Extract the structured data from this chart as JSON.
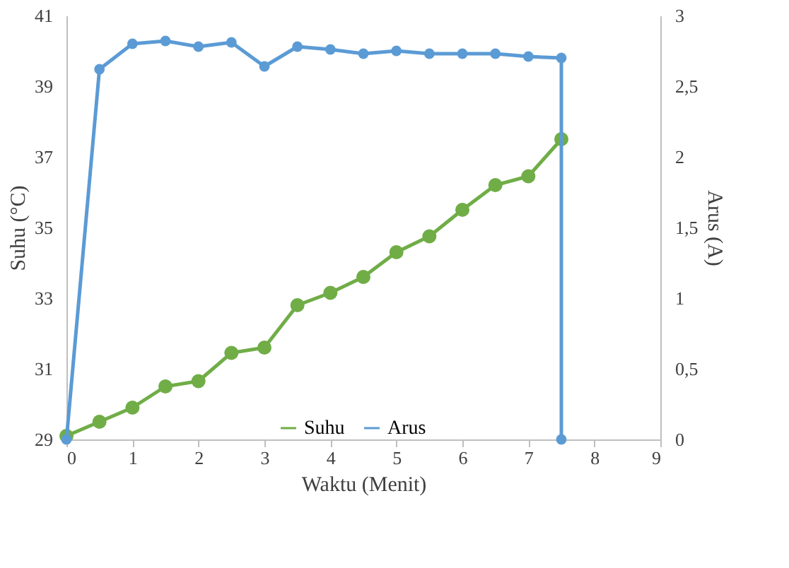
{
  "chart_data": {
    "type": "line",
    "xlabel": "Waktu (Menit)",
    "ylabel": "Suhu (°C)",
    "y2label": "Arus (A)",
    "xlim": [
      0,
      9
    ],
    "xticks": [
      0,
      1,
      2,
      3,
      4,
      5,
      6,
      7,
      8,
      9
    ],
    "ylim": [
      29,
      41
    ],
    "yticks": [
      29,
      31,
      33,
      35,
      37,
      39,
      41
    ],
    "y2lim": [
      0,
      3
    ],
    "y2ticks": [
      0,
      {
        "value": 0.5,
        "label": "0,5"
      },
      1,
      {
        "value": 1.5,
        "label": "1,5"
      },
      2,
      {
        "value": 2.5,
        "label": "2,5"
      },
      3
    ],
    "grid": false,
    "legend": "bottom",
    "marker": "circle",
    "line_style": "solid",
    "series": [
      {
        "name": "Suhu",
        "color": "#70ad47",
        "x": [
          0,
          0.5,
          1,
          1.5,
          2,
          2.5,
          3,
          3.5,
          4,
          4.5,
          5,
          5.5,
          6,
          6.5,
          7,
          7.5
        ],
        "values": [
          29.1,
          29.5,
          29.9,
          30.5,
          30.65,
          31.45,
          31.6,
          32.8,
          33.15,
          33.6,
          34.3,
          34.75,
          35.5,
          36.2,
          36.45,
          37.5
        ]
      },
      {
        "name": "Arus",
        "color": "#5b9bd5",
        "axis": "y2",
        "x": [
          0,
          0.5,
          1,
          1.5,
          2,
          2.5,
          3,
          3.5,
          4,
          4.5,
          5,
          5.5,
          6,
          6.5,
          7,
          7.5,
          7.5
        ],
        "values": [
          0,
          2.62,
          2.8,
          2.82,
          2.78,
          2.81,
          2.64,
          2.78,
          2.76,
          2.73,
          2.75,
          2.73,
          2.73,
          2.73,
          2.71,
          2.7,
          0
        ]
      }
    ]
  }
}
